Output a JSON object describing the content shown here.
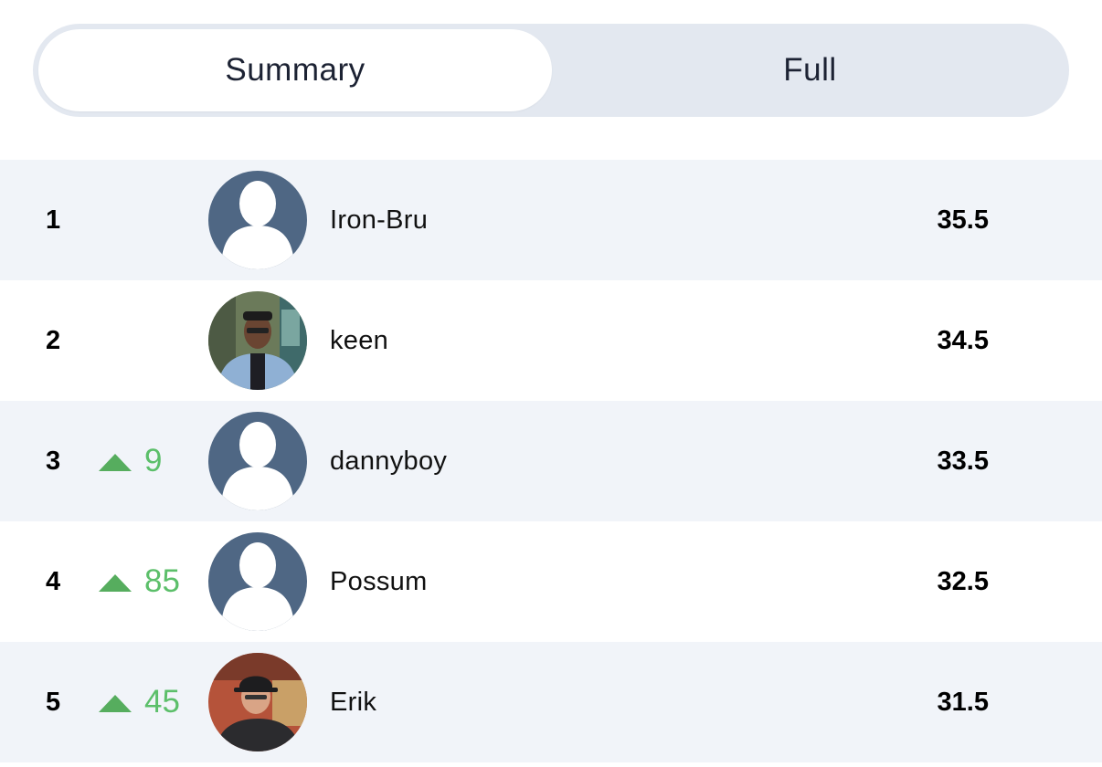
{
  "tabs": [
    {
      "label": "Summary",
      "active": true
    },
    {
      "label": "Full",
      "active": false
    }
  ],
  "colors": {
    "toggle_bg": "#e3e8f0",
    "row_shade": "#f1f4f9",
    "movement_up": "#5cbf6a",
    "avatar_placeholder": "#4f6784"
  },
  "leaderboard": [
    {
      "rank": "1",
      "movement": "",
      "name": "Iron-Bru",
      "score": "35.5",
      "avatar": "default-avatar-icon"
    },
    {
      "rank": "2",
      "movement": "",
      "name": "keen",
      "score": "34.5",
      "avatar": "user-photo"
    },
    {
      "rank": "3",
      "movement": "9",
      "name": "dannyboy",
      "score": "33.5",
      "avatar": "default-avatar-icon"
    },
    {
      "rank": "4",
      "movement": "85",
      "name": "Possum",
      "score": "32.5",
      "avatar": "default-avatar-icon"
    },
    {
      "rank": "5",
      "movement": "45",
      "name": "Erik",
      "score": "31.5",
      "avatar": "user-photo"
    }
  ]
}
